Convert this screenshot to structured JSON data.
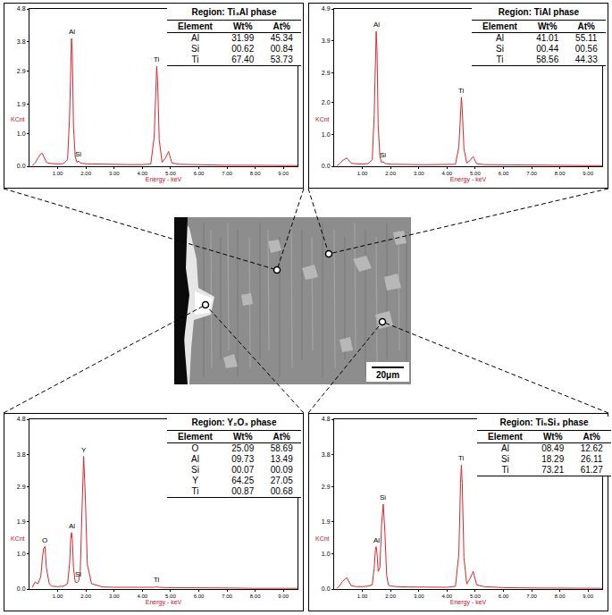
{
  "chart_data": [
    {
      "type": "line",
      "xlabel": "Energy - keV",
      "ylabel": "KCnt",
      "color": "#e0252a",
      "xlim": [
        0,
        9.5
      ],
      "xticks": [
        {
          "value": 1,
          "label": "1.00"
        },
        {
          "value": 2,
          "label": "2.00"
        },
        {
          "value": 3,
          "label": "3.00"
        },
        {
          "value": 4,
          "label": "4.00"
        },
        {
          "value": 5,
          "label": "5.00"
        },
        {
          "value": 6,
          "label": "6.00"
        },
        {
          "value": 7,
          "label": "7.00"
        },
        {
          "value": 8,
          "label": "8.00"
        },
        {
          "value": 9,
          "label": "9.00"
        }
      ],
      "ylim": [
        0,
        4.8
      ],
      "yticks": [
        {
          "value": 0,
          "label": "0.0"
        },
        {
          "value": 1,
          "label": "1.0"
        },
        1.9,
        2.9,
        3.8,
        4.8
      ],
      "x": [
        0.1,
        0.2,
        0.3,
        0.4,
        0.45,
        0.5,
        0.55,
        0.6,
        0.7,
        0.8,
        1.0,
        1.2,
        1.35,
        1.42,
        1.46,
        1.49,
        1.52,
        1.56,
        1.62,
        1.68,
        1.74,
        1.8,
        1.86,
        1.92,
        1.98,
        2.05,
        2.2,
        2.6,
        3.0,
        3.5,
        4.0,
        4.3,
        4.42,
        4.48,
        4.51,
        4.54,
        4.6,
        4.7,
        4.82,
        4.9,
        4.93,
        4.96,
        5.05,
        5.3,
        6.0,
        7.0,
        8.0,
        9.0,
        9.5
      ],
      "values": [
        0.02,
        0.1,
        0.25,
        0.38,
        0.4,
        0.32,
        0.2,
        0.12,
        0.09,
        0.08,
        0.07,
        0.08,
        0.2,
        1.5,
        3.5,
        3.9,
        3.4,
        1.2,
        0.3,
        0.12,
        0.16,
        0.1,
        0.09,
        0.08,
        0.08,
        0.07,
        0.07,
        0.06,
        0.06,
        0.05,
        0.05,
        0.07,
        0.9,
        2.6,
        3.05,
        2.6,
        0.8,
        0.12,
        0.25,
        0.4,
        0.45,
        0.35,
        0.1,
        0.06,
        0.04,
        0.03,
        0.03,
        0.02,
        0.02
      ],
      "annotations": [
        {
          "text": "Al",
          "x": 1.49,
          "y": 3.9
        },
        {
          "text": "Si",
          "x": 1.74,
          "y": 0.16
        },
        {
          "text": "Ti",
          "x": 4.51,
          "y": 3.05
        }
      ],
      "table": {
        "title": "Region: Ti₃Al phase",
        "columns": [
          "Element",
          "Wt%",
          "At%"
        ],
        "rows": [
          [
            "Al",
            "31.99",
            "45.34"
          ],
          [
            "Si",
            "00.62",
            "00.84"
          ],
          [
            "Ti",
            "67.40",
            "53.73"
          ]
        ]
      }
    },
    {
      "type": "line",
      "xlabel": "Energy - keV",
      "ylabel": "KCnt",
      "color": "#e0252a",
      "xlim": [
        0,
        9.5
      ],
      "xticks": [
        {
          "value": 1,
          "label": "1.00"
        },
        {
          "value": 2,
          "label": "2.00"
        },
        {
          "value": 3,
          "label": "3.00"
        },
        {
          "value": 4,
          "label": "4.00"
        },
        {
          "value": 5,
          "label": "5.00"
        },
        {
          "value": 6,
          "label": "6.00"
        },
        {
          "value": 7,
          "label": "7.00"
        },
        {
          "value": 8,
          "label": "8.00"
        },
        {
          "value": 9,
          "label": "9.00"
        }
      ],
      "ylim": [
        0,
        4.9
      ],
      "yticks": [
        {
          "value": 0,
          "label": "0.0"
        },
        {
          "value": 1,
          "label": "1.0"
        },
        {
          "value": 2,
          "label": "2.0"
        },
        2.9,
        3.9,
        4.9
      ],
      "x": [
        0.1,
        0.2,
        0.3,
        0.4,
        0.45,
        0.5,
        0.55,
        0.6,
        0.7,
        0.8,
        1.0,
        1.2,
        1.35,
        1.42,
        1.46,
        1.49,
        1.52,
        1.56,
        1.62,
        1.68,
        1.74,
        1.8,
        1.86,
        1.92,
        1.98,
        2.05,
        2.2,
        2.6,
        3.0,
        3.5,
        4.0,
        4.3,
        4.42,
        4.48,
        4.51,
        4.54,
        4.6,
        4.7,
        4.82,
        4.9,
        4.93,
        4.96,
        5.05,
        5.3,
        6.0,
        7.0,
        8.0,
        9.0,
        9.5
      ],
      "values": [
        0.02,
        0.08,
        0.18,
        0.25,
        0.26,
        0.2,
        0.14,
        0.1,
        0.08,
        0.07,
        0.07,
        0.08,
        0.2,
        1.6,
        3.8,
        4.2,
        3.6,
        1.3,
        0.3,
        0.12,
        0.14,
        0.09,
        0.08,
        0.07,
        0.07,
        0.06,
        0.06,
        0.05,
        0.05,
        0.05,
        0.05,
        0.06,
        0.6,
        1.8,
        2.15,
        1.8,
        0.55,
        0.1,
        0.18,
        0.28,
        0.3,
        0.24,
        0.08,
        0.05,
        0.04,
        0.03,
        0.03,
        0.02,
        0.02
      ],
      "annotations": [
        {
          "text": "Al",
          "x": 1.49,
          "y": 4.2
        },
        {
          "text": "Si",
          "x": 1.74,
          "y": 0.14
        },
        {
          "text": "Ti",
          "x": 4.51,
          "y": 2.15
        }
      ],
      "table": {
        "title": "Region: TiAl phase",
        "columns": [
          "Element",
          "Wt%",
          "At%"
        ],
        "rows": [
          [
            "Al",
            "41.01",
            "55.11"
          ],
          [
            "Si",
            "00.44",
            "00.56"
          ],
          [
            "Ti",
            "58.56",
            "44.33"
          ]
        ]
      }
    },
    {
      "type": "line",
      "xlabel": "Energy - keV",
      "ylabel": "KCnt",
      "color": "#e0252a",
      "xlim": [
        0,
        9.5
      ],
      "xticks": [
        {
          "value": 1,
          "label": "1.00"
        },
        {
          "value": 2,
          "label": "2.00"
        },
        {
          "value": 3,
          "label": "3.00"
        },
        {
          "value": 4,
          "label": "4.00"
        },
        {
          "value": 5,
          "label": "5.00"
        },
        {
          "value": 6,
          "label": "6.00"
        },
        {
          "value": 7,
          "label": "7.00"
        },
        {
          "value": 8,
          "label": "8.00"
        },
        {
          "value": 9,
          "label": "9.00"
        }
      ],
      "ylim": [
        0,
        4.8
      ],
      "yticks": [
        {
          "value": 0,
          "label": "0.0"
        },
        {
          "value": 1,
          "label": "1.0"
        },
        1.9,
        2.9,
        3.8,
        4.8
      ],
      "x": [
        0.1,
        0.2,
        0.3,
        0.4,
        0.45,
        0.5,
        0.55,
        0.6,
        0.7,
        0.8,
        1.0,
        1.2,
        1.35,
        1.42,
        1.46,
        1.49,
        1.52,
        1.56,
        1.62,
        1.68,
        1.74,
        1.8,
        1.86,
        1.92,
        1.98,
        2.05,
        2.2,
        2.6,
        3.0,
        3.5,
        4.0,
        4.3,
        4.42,
        4.48,
        4.51,
        4.54,
        4.6,
        4.7,
        4.82,
        4.9,
        4.93,
        4.96,
        5.05,
        5.3,
        6.0,
        7.0,
        8.0,
        9.0,
        9.5
      ],
      "values": [
        0.05,
        0.2,
        0.15,
        0.35,
        0.8,
        1.15,
        1.2,
        0.6,
        0.15,
        0.08,
        0.07,
        0.08,
        0.15,
        0.7,
        1.4,
        1.6,
        1.4,
        0.6,
        0.2,
        0.18,
        0.22,
        0.5,
        2.2,
        3.75,
        2.6,
        0.7,
        0.15,
        0.06,
        0.05,
        0.05,
        0.04,
        0.04,
        0.05,
        0.06,
        0.07,
        0.06,
        0.05,
        0.04,
        0.04,
        0.04,
        0.04,
        0.04,
        0.04,
        0.03,
        0.03,
        0.03,
        0.02,
        0.02,
        0.02
      ],
      "annotations": [
        {
          "text": "O",
          "x": 0.55,
          "y": 1.2
        },
        {
          "text": "Al",
          "x": 1.49,
          "y": 1.6
        },
        {
          "text": "Si",
          "x": 1.74,
          "y": 0.22
        },
        {
          "text": "Y",
          "x": 1.92,
          "y": 3.75
        },
        {
          "text": "Ti",
          "x": 4.51,
          "y": 0.07
        }
      ],
      "table": {
        "title": "Region: Y₂O₃ phase",
        "columns": [
          "Element",
          "Wt%",
          "At%"
        ],
        "rows": [
          [
            "O",
            "25.09",
            "58.69"
          ],
          [
            "Al",
            "09.73",
            "13.49"
          ],
          [
            "Si",
            "00.07",
            "00.09"
          ],
          [
            "Y",
            "64.25",
            "27.05"
          ],
          [
            "Ti",
            "00.87",
            "00.68"
          ]
        ]
      }
    },
    {
      "type": "line",
      "xlabel": "Energy - keV",
      "ylabel": "KCnt",
      "color": "#e0252a",
      "xlim": [
        0,
        9.5
      ],
      "xticks": [
        {
          "value": 1,
          "label": "1.00"
        },
        {
          "value": 2,
          "label": "2.00"
        },
        {
          "value": 3,
          "label": "3.00"
        },
        {
          "value": 4,
          "label": "4.00"
        },
        {
          "value": 5,
          "label": "5.00"
        },
        {
          "value": 6,
          "label": "6.00"
        },
        {
          "value": 7,
          "label": "7.00"
        },
        {
          "value": 8,
          "label": "8.00"
        },
        {
          "value": 9,
          "label": "9.00"
        }
      ],
      "ylim": [
        0,
        4.8
      ],
      "yticks": [
        {
          "value": 0,
          "label": "0.0"
        },
        {
          "value": 1,
          "label": "1.0"
        },
        1.9,
        2.9,
        3.8,
        4.8
      ],
      "x": [
        0.1,
        0.2,
        0.3,
        0.4,
        0.45,
        0.5,
        0.55,
        0.6,
        0.7,
        0.8,
        1.0,
        1.2,
        1.35,
        1.42,
        1.46,
        1.49,
        1.52,
        1.56,
        1.62,
        1.68,
        1.74,
        1.8,
        1.86,
        1.92,
        1.98,
        2.05,
        2.2,
        2.6,
        3.0,
        3.5,
        4.0,
        4.3,
        4.42,
        4.48,
        4.51,
        4.54,
        4.6,
        4.7,
        4.82,
        4.9,
        4.93,
        4.96,
        5.05,
        5.3,
        6.0,
        7.0,
        8.0,
        9.0,
        9.5
      ],
      "values": [
        0.02,
        0.1,
        0.22,
        0.3,
        0.32,
        0.25,
        0.15,
        0.1,
        0.08,
        0.07,
        0.07,
        0.08,
        0.12,
        0.6,
        1.1,
        1.2,
        1.0,
        0.5,
        0.6,
        1.8,
        2.4,
        1.6,
        0.4,
        0.12,
        0.09,
        0.08,
        0.07,
        0.06,
        0.06,
        0.05,
        0.05,
        0.08,
        1.0,
        3.0,
        3.5,
        3.0,
        0.9,
        0.14,
        0.3,
        0.45,
        0.5,
        0.4,
        0.12,
        0.07,
        0.04,
        0.03,
        0.03,
        0.02,
        0.02
      ],
      "annotations": [
        {
          "text": "Al",
          "x": 1.49,
          "y": 1.2
        },
        {
          "text": "Si",
          "x": 1.74,
          "y": 2.4
        },
        {
          "text": "Ti",
          "x": 4.51,
          "y": 3.5
        }
      ],
      "table": {
        "title": "Region: Ti₅Si₃ phase",
        "columns": [
          "Element",
          "Wt%",
          "At%"
        ],
        "rows": [
          [
            "Al",
            "08.49",
            "12.62"
          ],
          [
            "Si",
            "18.29",
            "26.11"
          ],
          [
            "Ti",
            "73.21",
            "61.27"
          ]
        ]
      }
    }
  ],
  "micrograph": {
    "scale_bar": "20μm"
  }
}
